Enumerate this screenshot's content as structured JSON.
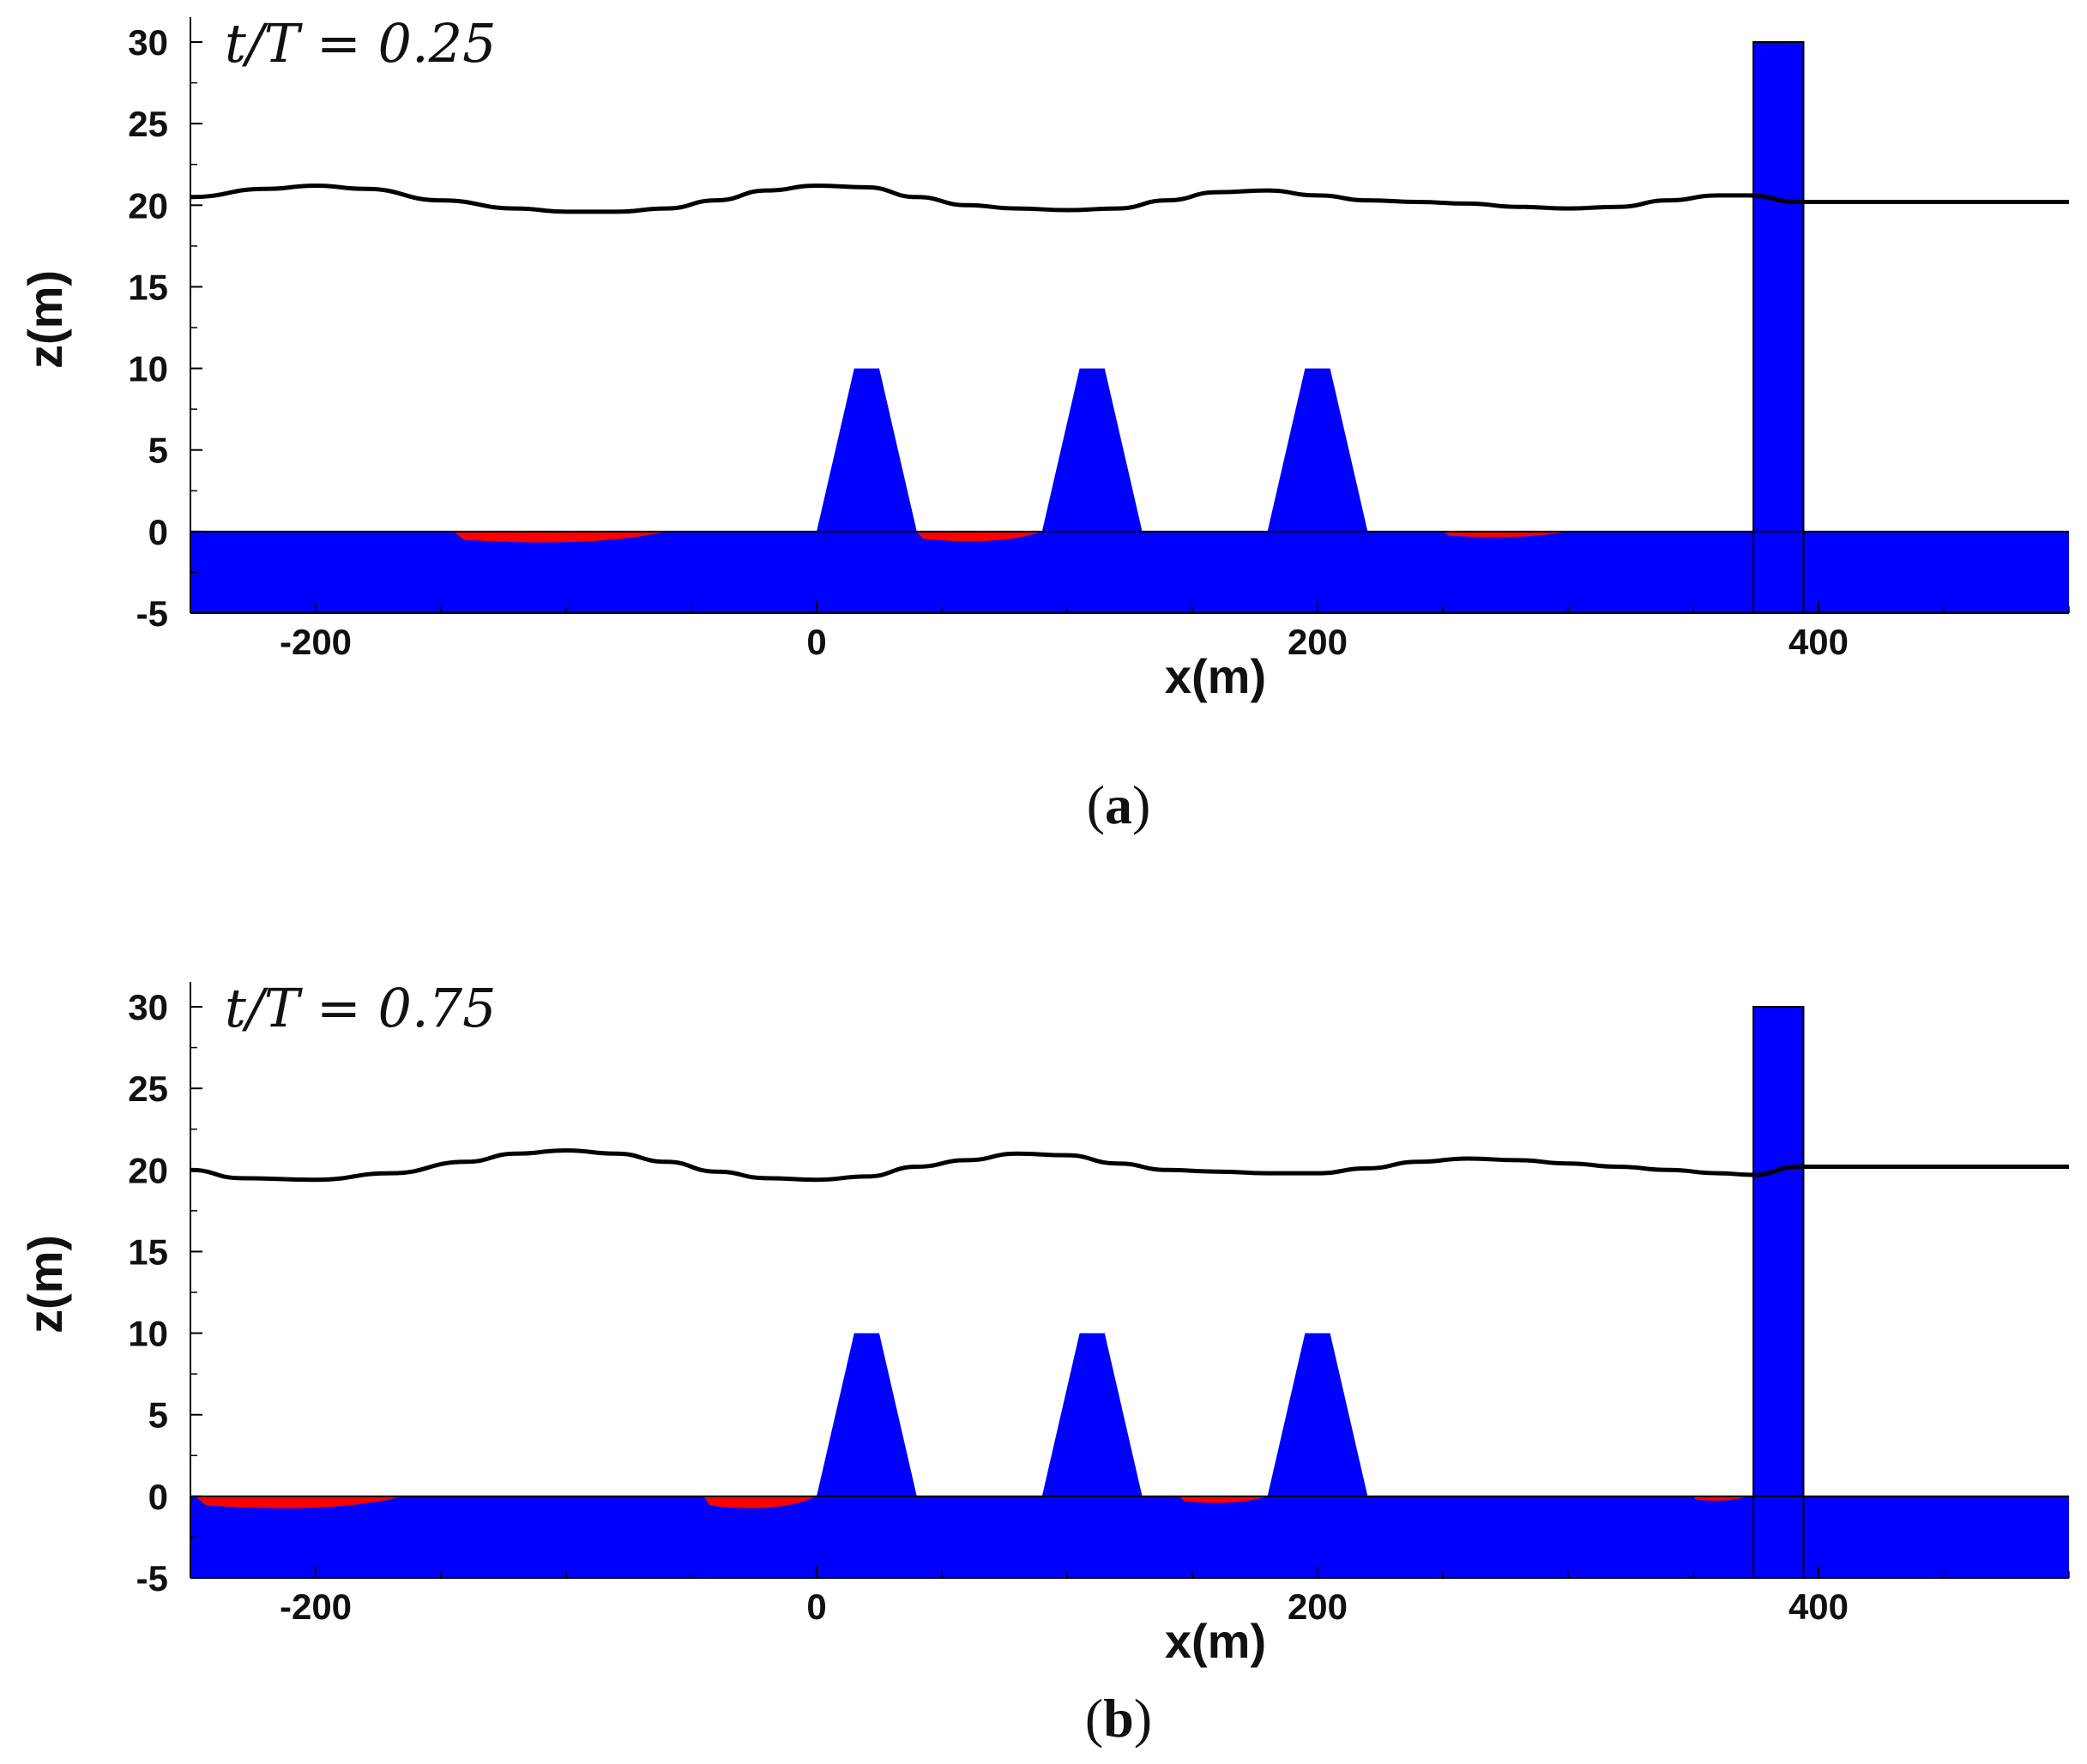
{
  "colors": {
    "structure": "#0000ff",
    "sediment": "#ff0000",
    "surface": "#000000",
    "axis": "#000000"
  },
  "chart_data": [
    {
      "type": "line",
      "time_label": "t/T = 0.25",
      "caption_letter": "a",
      "xlabel": "x(m)",
      "ylabel": "z(m)",
      "xlim": [
        -250,
        500
      ],
      "ylim": [
        -5,
        31
      ],
      "xticks": [
        -200,
        0,
        200,
        400
      ],
      "yticks": [
        -5,
        0,
        5,
        10,
        15,
        20,
        25,
        30
      ],
      "surface": {
        "x": [
          -250,
          -220,
          -200,
          -180,
          -150,
          -120,
          -100,
          -80,
          -60,
          -40,
          -20,
          0,
          20,
          40,
          60,
          80,
          100,
          120,
          140,
          160,
          180,
          200,
          220,
          240,
          260,
          280,
          300,
          320,
          340,
          360,
          372,
          392,
          420,
          460,
          500
        ],
        "z": [
          20.5,
          21.0,
          21.2,
          21.0,
          20.3,
          19.8,
          19.6,
          19.6,
          19.8,
          20.3,
          20.9,
          21.2,
          21.1,
          20.5,
          20.0,
          19.8,
          19.7,
          19.8,
          20.3,
          20.8,
          20.9,
          20.6,
          20.3,
          20.2,
          20.1,
          19.9,
          19.8,
          19.9,
          20.3,
          20.6,
          20.6,
          20.2,
          20.2,
          20.2,
          20.2
        ]
      },
      "bed_level": 0,
      "bed_bottom": -5,
      "breakwaters": [
        {
          "x_left": 0,
          "x_right": 40,
          "crest_width": 10,
          "height": 10
        },
        {
          "x_left": 90,
          "x_right": 130,
          "crest_width": 10,
          "height": 10
        },
        {
          "x_left": 180,
          "x_right": 220,
          "crest_width": 10,
          "height": 10
        }
      ],
      "wall": {
        "x_left": 374,
        "x_right": 394,
        "height": 30
      },
      "sediment_patches": [
        {
          "x_start": -145,
          "x_end": -60,
          "depth": 0.5
        },
        {
          "x_start": 40,
          "x_end": 90,
          "depth": 0.45
        },
        {
          "x_start": 250,
          "x_end": 300,
          "depth": 0.25
        }
      ]
    },
    {
      "type": "line",
      "time_label": "t/T = 0.75",
      "caption_letter": "b",
      "xlabel": "x(m)",
      "ylabel": "z(m)",
      "xlim": [
        -250,
        500
      ],
      "ylim": [
        -5,
        31
      ],
      "xticks": [
        -200,
        0,
        200,
        400
      ],
      "yticks": [
        -5,
        0,
        5,
        10,
        15,
        20,
        25,
        30
      ],
      "surface": {
        "x": [
          -250,
          -230,
          -200,
          -170,
          -140,
          -120,
          -100,
          -80,
          -60,
          -40,
          -20,
          0,
          20,
          40,
          60,
          80,
          100,
          120,
          140,
          160,
          180,
          200,
          220,
          240,
          260,
          280,
          300,
          320,
          340,
          360,
          374,
          392,
          420,
          460,
          500
        ],
        "z": [
          20.0,
          19.5,
          19.4,
          19.8,
          20.5,
          21.0,
          21.2,
          21.0,
          20.5,
          19.9,
          19.5,
          19.4,
          19.6,
          20.2,
          20.6,
          21.0,
          20.9,
          20.4,
          20.0,
          19.9,
          19.8,
          19.8,
          20.1,
          20.5,
          20.7,
          20.6,
          20.4,
          20.2,
          20.0,
          19.8,
          19.7,
          20.2,
          20.2,
          20.2,
          20.2
        ]
      },
      "bed_level": 0,
      "bed_bottom": -5,
      "breakwaters": [
        {
          "x_left": 0,
          "x_right": 40,
          "crest_width": 10,
          "height": 10
        },
        {
          "x_left": 90,
          "x_right": 130,
          "crest_width": 10,
          "height": 10
        },
        {
          "x_left": 180,
          "x_right": 220,
          "crest_width": 10,
          "height": 10
        }
      ],
      "wall": {
        "x_left": 374,
        "x_right": 394,
        "height": 30
      },
      "sediment_patches": [
        {
          "x_start": -248,
          "x_end": -165,
          "depth": 0.55
        },
        {
          "x_start": -45,
          "x_end": 0,
          "depth": 0.55
        },
        {
          "x_start": 145,
          "x_end": 180,
          "depth": 0.3
        },
        {
          "x_start": 350,
          "x_end": 372,
          "depth": 0.2
        }
      ]
    }
  ]
}
